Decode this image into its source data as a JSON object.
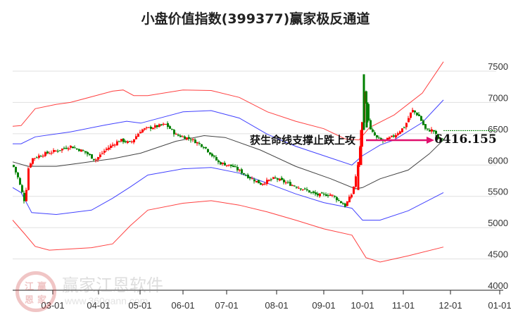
{
  "title": "小盘价值指数(399377)赢家极反通道",
  "annotation": {
    "text": "获生命线支撑止跌上攻",
    "price_label": "6416.155",
    "arrow_color": "#e0106e"
  },
  "watermark": {
    "brand": "赢家江恩软件",
    "url": "www.360gann.com",
    "seal_chars": [
      "江",
      "赢",
      "恩",
      "家"
    ]
  },
  "colors": {
    "up": "#ff0000",
    "down": "#008000",
    "outer_band": "#ff2020",
    "inner_band": "#2020ff",
    "lifeline": "#222222",
    "grid": "#e0e0e0",
    "last_price_line": "#008000"
  },
  "chart_data": {
    "type": "candlestick",
    "title": "小盘价值指数(399377)赢家极反通道",
    "xlabel": "",
    "ylabel": "",
    "ylim": [
      4000,
      7700
    ],
    "yticks": [
      4000,
      4500,
      5000,
      5500,
      6000,
      6500,
      7000,
      7500
    ],
    "xticks": [
      "03-01",
      "04-01",
      "05-01",
      "06-01",
      "07-01",
      "08-01",
      "09-01",
      "10-01",
      "11-01",
      "12-01",
      "01-01"
    ],
    "grid": true,
    "y_axis_position": "right",
    "last_close": 6416.155,
    "series": [
      {
        "name": "upper_outer_band",
        "color": "#ff2020",
        "points": [
          [
            18,
            6620
          ],
          [
            30,
            6630
          ],
          [
            50,
            6900
          ],
          [
            80,
            6970
          ],
          [
            100,
            7000
          ],
          [
            130,
            7090
          ],
          [
            160,
            7180
          ],
          [
            175,
            7200
          ],
          [
            190,
            7110
          ],
          [
            210,
            7110
          ],
          [
            260,
            7200
          ],
          [
            300,
            7190
          ],
          [
            340,
            7080
          ],
          [
            380,
            6850
          ],
          [
            420,
            6700
          ],
          [
            460,
            6580
          ],
          [
            490,
            6420
          ],
          [
            510,
            6400
          ],
          [
            525,
            6600
          ],
          [
            560,
            6800
          ],
          [
            600,
            7150
          ],
          [
            630,
            7650
          ]
        ]
      },
      {
        "name": "upper_inner_band",
        "color": "#2020ff",
        "points": [
          [
            18,
            6340
          ],
          [
            30,
            6340
          ],
          [
            50,
            6450
          ],
          [
            100,
            6530
          ],
          [
            150,
            6640
          ],
          [
            180,
            6700
          ],
          [
            200,
            6670
          ],
          [
            260,
            6850
          ],
          [
            300,
            6870
          ],
          [
            340,
            6750
          ],
          [
            380,
            6490
          ],
          [
            420,
            6300
          ],
          [
            460,
            6150
          ],
          [
            500,
            6000
          ],
          [
            515,
            6150
          ],
          [
            540,
            6320
          ],
          [
            560,
            6400
          ],
          [
            600,
            6680
          ],
          [
            630,
            7040
          ]
        ]
      },
      {
        "name": "lifeline_middle",
        "color": "#222222",
        "points": [
          [
            18,
            6050
          ],
          [
            40,
            5980
          ],
          [
            80,
            5980
          ],
          [
            120,
            6040
          ],
          [
            160,
            6100
          ],
          [
            200,
            6190
          ],
          [
            250,
            6380
          ],
          [
            290,
            6470
          ],
          [
            320,
            6440
          ],
          [
            370,
            6240
          ],
          [
            420,
            5980
          ],
          [
            470,
            5780
          ],
          [
            505,
            5620
          ],
          [
            515,
            5640
          ],
          [
            540,
            5780
          ],
          [
            580,
            5920
          ],
          [
            610,
            6180
          ],
          [
            630,
            6400
          ]
        ]
      },
      {
        "name": "lower_inner_band",
        "color": "#2020ff",
        "points": [
          [
            18,
            5640
          ],
          [
            30,
            5560
          ],
          [
            45,
            5240
          ],
          [
            80,
            5210
          ],
          [
            130,
            5280
          ],
          [
            160,
            5470
          ],
          [
            185,
            5650
          ],
          [
            210,
            5840
          ],
          [
            260,
            5940
          ],
          [
            300,
            5960
          ],
          [
            340,
            5870
          ],
          [
            380,
            5710
          ],
          [
            420,
            5540
          ],
          [
            460,
            5400
          ],
          [
            500,
            5310
          ],
          [
            515,
            5120
          ],
          [
            540,
            5120
          ],
          [
            580,
            5270
          ],
          [
            630,
            5560
          ]
        ]
      },
      {
        "name": "lower_outer_band",
        "color": "#ff2020",
        "points": [
          [
            18,
            5120
          ],
          [
            35,
            4900
          ],
          [
            50,
            4700
          ],
          [
            70,
            4640
          ],
          [
            130,
            4680
          ],
          [
            160,
            4740
          ],
          [
            185,
            5030
          ],
          [
            210,
            5280
          ],
          [
            260,
            5390
          ],
          [
            300,
            5430
          ],
          [
            340,
            5360
          ],
          [
            380,
            5250
          ],
          [
            420,
            5120
          ],
          [
            460,
            4980
          ],
          [
            500,
            4880
          ],
          [
            520,
            4520
          ],
          [
            540,
            4450
          ],
          [
            580,
            4550
          ],
          [
            630,
            4690
          ]
        ]
      },
      {
        "name": "price_close",
        "color": "#000000",
        "points": [
          [
            18,
            6000
          ],
          [
            25,
            5800
          ],
          [
            35,
            5400
          ],
          [
            40,
            5950
          ],
          [
            45,
            6100
          ],
          [
            60,
            6170
          ],
          [
            80,
            6230
          ],
          [
            100,
            6300
          ],
          [
            120,
            6210
          ],
          [
            135,
            6080
          ],
          [
            150,
            6250
          ],
          [
            170,
            6400
          ],
          [
            185,
            6350
          ],
          [
            200,
            6560
          ],
          [
            215,
            6600
          ],
          [
            235,
            6650
          ],
          [
            250,
            6480
          ],
          [
            270,
            6420
          ],
          [
            290,
            6290
          ],
          [
            310,
            6040
          ],
          [
            330,
            5980
          ],
          [
            350,
            5830
          ],
          [
            370,
            5700
          ],
          [
            390,
            5790
          ],
          [
            410,
            5700
          ],
          [
            430,
            5620
          ],
          [
            450,
            5520
          ],
          [
            470,
            5530
          ],
          [
            490,
            5350
          ],
          [
            500,
            5550
          ],
          [
            508,
            5980
          ],
          [
            513,
            6500
          ],
          [
            517,
            7200
          ],
          [
            525,
            6570
          ],
          [
            535,
            6430
          ],
          [
            545,
            6380
          ],
          [
            560,
            6470
          ],
          [
            575,
            6620
          ],
          [
            585,
            6880
          ],
          [
            595,
            6780
          ],
          [
            605,
            6550
          ],
          [
            615,
            6560
          ],
          [
            622,
            6420
          ],
          [
            630,
            6416
          ]
        ]
      }
    ]
  }
}
